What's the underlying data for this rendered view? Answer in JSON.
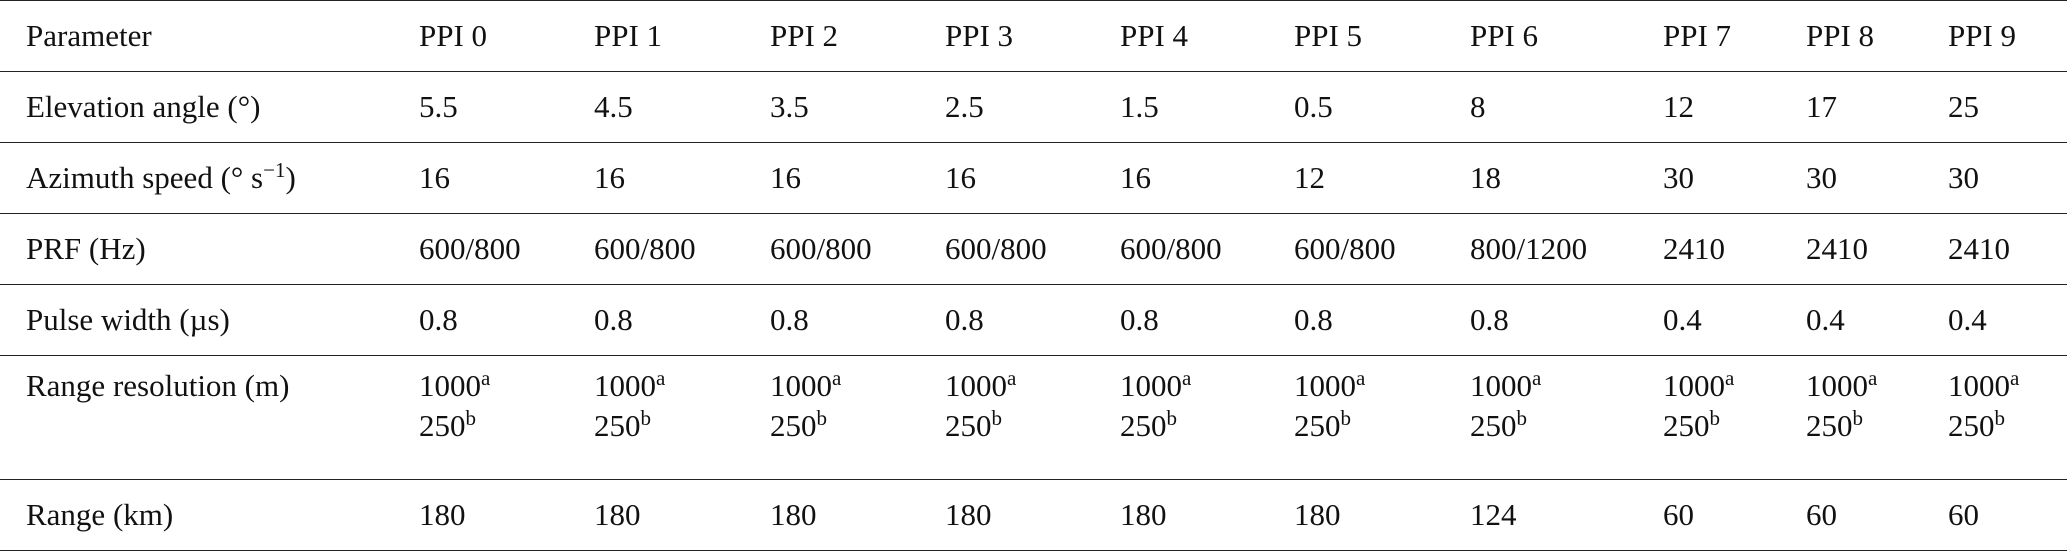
{
  "table": {
    "header": [
      "Parameter",
      "PPI 0",
      "PPI 1",
      "PPI 2",
      "PPI 3",
      "PPI 4",
      "PPI 5",
      "PPI 6",
      "PPI 7",
      "PPI 8",
      "PPI 9"
    ],
    "rows": [
      {
        "label": "Elevation angle (°)",
        "values": [
          "5.5",
          "4.5",
          "3.5",
          "2.5",
          "1.5",
          "0.5",
          "8",
          "12",
          "17",
          "25"
        ]
      },
      {
        "label": [
          "Azimuth speed (° s",
          {
            "sup": "−1"
          },
          ")"
        ],
        "values": [
          "16",
          "16",
          "16",
          "16",
          "16",
          "12",
          "18",
          "30",
          "30",
          "30"
        ]
      },
      {
        "label": "PRF (Hz)",
        "values": [
          "600/800",
          "600/800",
          "600/800",
          "600/800",
          "600/800",
          "600/800",
          "800/1200",
          "2410",
          "2410",
          "2410"
        ]
      },
      {
        "label": "Pulse width (µs)",
        "values": [
          "0.8",
          "0.8",
          "0.8",
          "0.8",
          "0.8",
          "0.8",
          "0.8",
          "0.4",
          "0.4",
          "0.4"
        ]
      },
      {
        "label": "Range resolution (m)",
        "values": [
          [
            [
              "1000",
              {
                "sup": "a"
              }
            ],
            [
              "250",
              {
                "sup": "b"
              }
            ]
          ],
          [
            [
              "1000",
              {
                "sup": "a"
              }
            ],
            [
              "250",
              {
                "sup": "b"
              }
            ]
          ],
          [
            [
              "1000",
              {
                "sup": "a"
              }
            ],
            [
              "250",
              {
                "sup": "b"
              }
            ]
          ],
          [
            [
              "1000",
              {
                "sup": "a"
              }
            ],
            [
              "250",
              {
                "sup": "b"
              }
            ]
          ],
          [
            [
              "1000",
              {
                "sup": "a"
              }
            ],
            [
              "250",
              {
                "sup": "b"
              }
            ]
          ],
          [
            [
              "1000",
              {
                "sup": "a"
              }
            ],
            [
              "250",
              {
                "sup": "b"
              }
            ]
          ],
          [
            [
              "1000",
              {
                "sup": "a"
              }
            ],
            [
              "250",
              {
                "sup": "b"
              }
            ]
          ],
          [
            [
              "1000",
              {
                "sup": "a"
              }
            ],
            [
              "250",
              {
                "sup": "b"
              }
            ]
          ],
          [
            [
              "1000",
              {
                "sup": "a"
              }
            ],
            [
              "250",
              {
                "sup": "b"
              }
            ]
          ],
          [
            [
              "1000",
              {
                "sup": "a"
              }
            ],
            [
              "250",
              {
                "sup": "b"
              }
            ]
          ]
        ]
      },
      {
        "label": "Range (km)",
        "values": [
          "180",
          "180",
          "180",
          "180",
          "180",
          "180",
          "124",
          "60",
          "60",
          "60"
        ]
      }
    ]
  }
}
